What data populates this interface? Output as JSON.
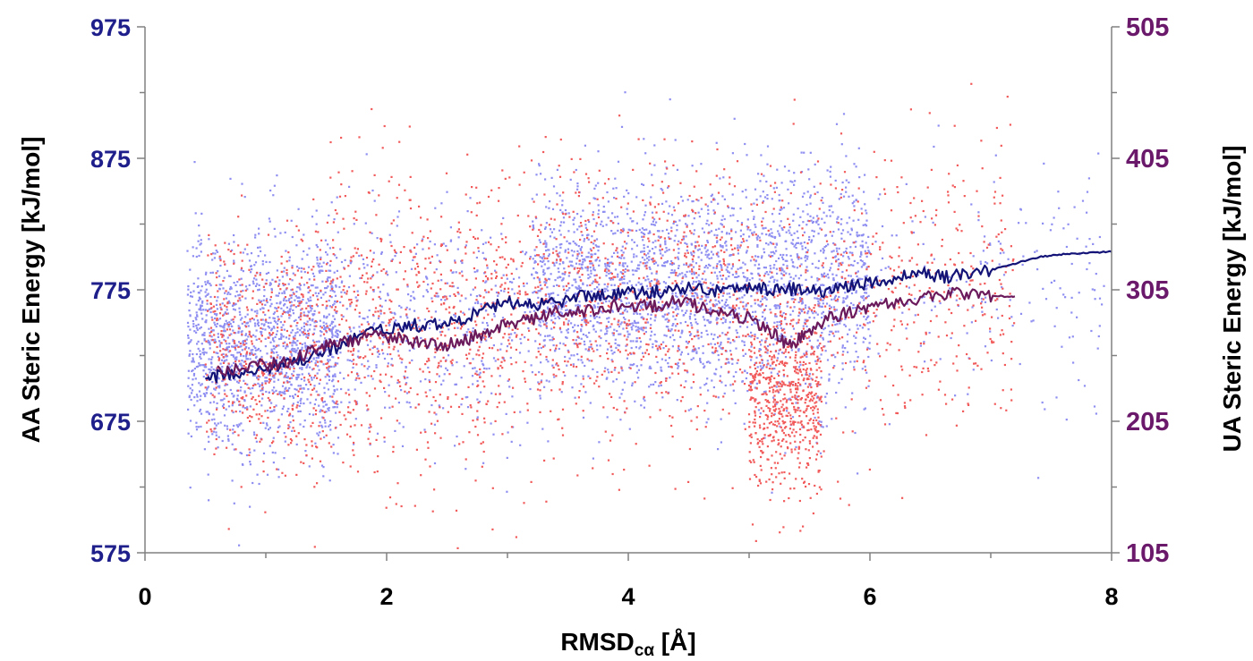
{
  "chart_data": {
    "type": "scatter",
    "x_axis": {
      "label": "RMSD",
      "label_subscript": "cα",
      "label_suffix": " [Å]",
      "range": [
        0,
        8
      ],
      "ticks": [
        "0",
        "2",
        "4",
        "6",
        "8"
      ]
    },
    "y_axis_left": {
      "label": "AA Steric Energy [kJ/mol]",
      "range": [
        575,
        975
      ],
      "ticks": [
        "575",
        "675",
        "775",
        "875",
        "975"
      ],
      "tick_color": "#1f1f8c"
    },
    "y_axis_right": {
      "label": "UA Steric Energy [kJ/mol]",
      "range": [
        105,
        505
      ],
      "ticks": [
        "105",
        "205",
        "305",
        "405",
        "505"
      ],
      "tick_color": "#6b1a6b"
    },
    "grid": false,
    "legend": "none",
    "series": [
      {
        "axis": "left",
        "kind": "scatter",
        "color": "#8f8ff2",
        "clusters": [
          {
            "x_range": [
              0.35,
              1.6
            ],
            "y_mean": 735,
            "y_sd": 40,
            "count": 1400
          },
          {
            "x_range": [
              1.5,
              3.2
            ],
            "y_mean": 750,
            "y_sd": 40,
            "count": 500
          },
          {
            "x_range": [
              3.2,
              5.0
            ],
            "y_mean": 775,
            "y_sd": 40,
            "count": 1600
          },
          {
            "x_range": [
              5.0,
              6.0
            ],
            "y_mean": 775,
            "y_sd": 45,
            "count": 900
          },
          {
            "x_range": [
              6.0,
              8.0
            ],
            "y_mean": 780,
            "y_sd": 45,
            "count": 180
          }
        ]
      },
      {
        "axis": "right",
        "kind": "scatter",
        "color": "#f25b5b",
        "clusters": [
          {
            "x_range": [
              0.5,
              1.5
            ],
            "y_mean": 255,
            "y_sd": 45,
            "count": 500
          },
          {
            "x_range": [
              1.5,
              3.2
            ],
            "y_mean": 280,
            "y_sd": 55,
            "count": 700
          },
          {
            "x_range": [
              3.2,
              5.0
            ],
            "y_mean": 300,
            "y_sd": 50,
            "count": 700
          },
          {
            "x_range": [
              5.0,
              5.6
            ],
            "y_mean": 220,
            "y_sd": 35,
            "count": 600
          },
          {
            "x_range": [
              5.0,
              7.2
            ],
            "y_mean": 300,
            "y_sd": 55,
            "count": 500
          }
        ]
      },
      {
        "axis": "left",
        "kind": "line",
        "color": "#141478",
        "x": [
          0.5,
          0.6,
          0.8,
          1.0,
          1.2,
          1.4,
          1.6,
          1.8,
          2.0,
          2.2,
          2.4,
          2.6,
          2.8,
          3.0,
          3.2,
          3.4,
          3.6,
          3.8,
          4.0,
          4.2,
          4.4,
          4.6,
          4.8,
          5.0,
          5.2,
          5.4,
          5.6,
          5.8,
          6.0,
          6.2,
          6.4,
          6.6,
          6.8,
          7.0,
          7.2,
          7.4,
          7.6,
          7.8,
          8.0
        ],
        "y": [
          706,
          710,
          712,
          715,
          718,
          725,
          732,
          740,
          745,
          748,
          748,
          752,
          760,
          765,
          764,
          765,
          770,
          772,
          773,
          773,
          776,
          776,
          774,
          778,
          775,
          776,
          773,
          778,
          780,
          783,
          788,
          785,
          786,
          790,
          795,
          800,
          802,
          803,
          804
        ]
      },
      {
        "axis": "right",
        "kind": "line",
        "color": "#6b1a5c",
        "x": [
          0.6,
          0.8,
          1.0,
          1.2,
          1.4,
          1.6,
          1.8,
          2.0,
          2.2,
          2.4,
          2.6,
          2.8,
          3.0,
          3.2,
          3.4,
          3.6,
          3.8,
          4.0,
          4.2,
          4.4,
          4.6,
          4.8,
          5.0,
          5.2,
          5.35,
          5.5,
          5.7,
          5.9,
          6.1,
          6.3,
          6.5,
          6.7,
          6.9,
          7.1,
          7.2
        ],
        "y": [
          243,
          245,
          248,
          250,
          260,
          265,
          268,
          270,
          266,
          262,
          265,
          272,
          278,
          283,
          288,
          287,
          292,
          294,
          292,
          296,
          292,
          288,
          283,
          272,
          262,
          274,
          285,
          290,
          294,
          296,
          300,
          302,
          302,
          300,
          300
        ]
      }
    ]
  }
}
